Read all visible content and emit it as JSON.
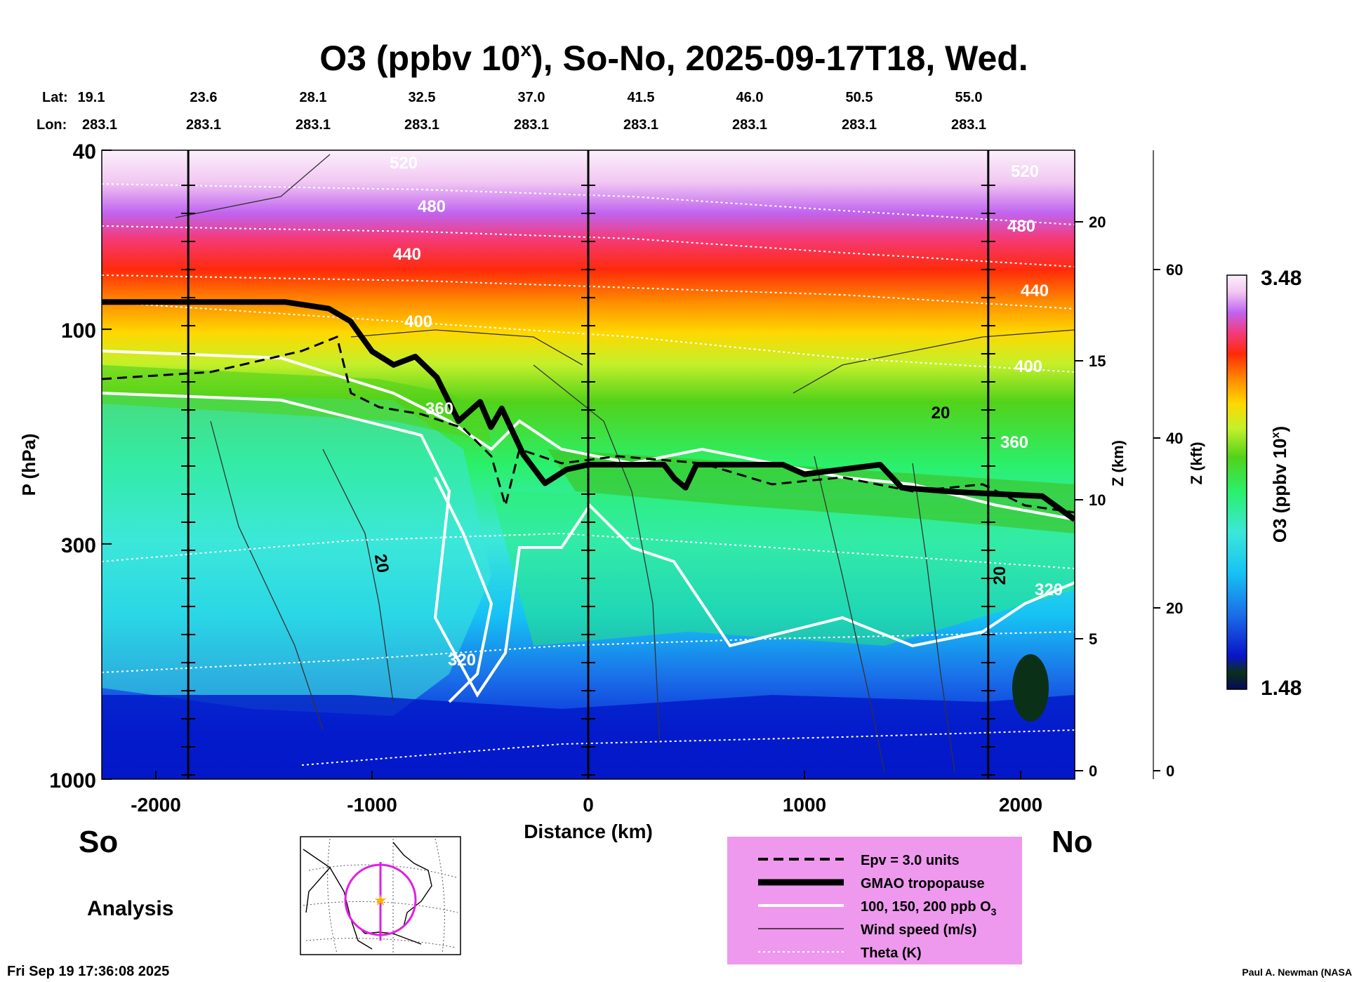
{
  "title": {
    "main": "O3 (ppbv 10",
    "sup": "x",
    "rest": "), So-No, 2025-09-17T18, Wed."
  },
  "header_rows": {
    "lat_label": "Lat:",
    "lon_label": "Lon:",
    "lat_values": [
      "19.1",
      "23.6",
      "28.1",
      "32.5",
      "37.0",
      "41.5",
      "46.0",
      "50.5",
      "55.0"
    ],
    "lon_values": [
      "283.1",
      "283.1",
      "283.1",
      "283.1",
      "283.1",
      "283.1",
      "283.1",
      "283.1",
      "283.1"
    ]
  },
  "footer": {
    "left_end": "So",
    "right_end": "No",
    "mode": "Analysis",
    "timestamp": "Fri Sep 19 17:36:08 2025",
    "credit": "Paul A. Newman (NASA"
  },
  "colors": {
    "legend_bg": "#ee99ee",
    "map_track": "#e020e0",
    "map_star": "#ffb000"
  },
  "legend": [
    {
      "style": "dashed",
      "label": "Epv = 3.0 units"
    },
    {
      "style": "thick",
      "label": "GMAO tropopause"
    },
    {
      "style": "white",
      "label": "100, 150, 200 ppb O",
      "sub": "3"
    },
    {
      "style": "thin",
      "label": "Wind speed (m/s)"
    },
    {
      "style": "dotted",
      "label": "Theta (K)"
    }
  ],
  "chart_data": {
    "type": "heatmap",
    "title": "O3 (ppbv 10x), So-No, 2025-09-17T18, Wed.",
    "xlabel": "Distance (km)",
    "ylabel": "P (hPa)",
    "xlim": [
      -2250,
      2250
    ],
    "ylim": [
      1000,
      40
    ],
    "y_scale": "log",
    "x_ticks": [
      -2000,
      -1000,
      0,
      1000,
      2000
    ],
    "x_tick_labels": [
      "-2000",
      "-1000",
      "0",
      "1000",
      "2000"
    ],
    "y_ticks": [
      40,
      100,
      300,
      1000
    ],
    "y_tick_labels": [
      "40",
      "100",
      "300",
      "1000"
    ],
    "z_km_ticks": [
      "0",
      "5",
      "10",
      "15",
      "20"
    ],
    "z_km_label": "Z (km)",
    "z_kft_ticks": [
      "0",
      "20",
      "40",
      "60"
    ],
    "z_kft_label": "Z (kft)",
    "colorbar": {
      "label": "O3 (ppbv 10",
      "label_sup": "x",
      "label_end": ")",
      "max_label": "3.48",
      "min_label": "1.48",
      "min": 1.48,
      "max": 3.48
    },
    "vertical_markers_km": [
      -1850,
      0,
      1850
    ],
    "theta_labels": [
      "520",
      "480",
      "440",
      "400",
      "360",
      "320",
      "520",
      "480",
      "440",
      "400",
      "360",
      "320"
    ],
    "wind_labels": [
      "20",
      "20",
      "20"
    ],
    "tropopause_hpa": [
      [
        -2250,
        87
      ],
      [
        -1800,
        87
      ],
      [
        -1400,
        87
      ],
      [
        -1200,
        90
      ],
      [
        -1100,
        96
      ],
      [
        -1000,
        112
      ],
      [
        -900,
        120
      ],
      [
        -800,
        115
      ],
      [
        -700,
        128
      ],
      [
        -600,
        160
      ],
      [
        -500,
        145
      ],
      [
        -450,
        165
      ],
      [
        -400,
        150
      ],
      [
        -300,
        190
      ],
      [
        -200,
        220
      ],
      [
        -100,
        205
      ],
      [
        0,
        200
      ],
      [
        200,
        200
      ],
      [
        350,
        200
      ],
      [
        400,
        215
      ],
      [
        450,
        225
      ],
      [
        500,
        200
      ],
      [
        900,
        200
      ],
      [
        1000,
        210
      ],
      [
        1350,
        200
      ],
      [
        1450,
        225
      ],
      [
        1700,
        230
      ],
      [
        2100,
        235
      ],
      [
        2250,
        265
      ]
    ]
  }
}
